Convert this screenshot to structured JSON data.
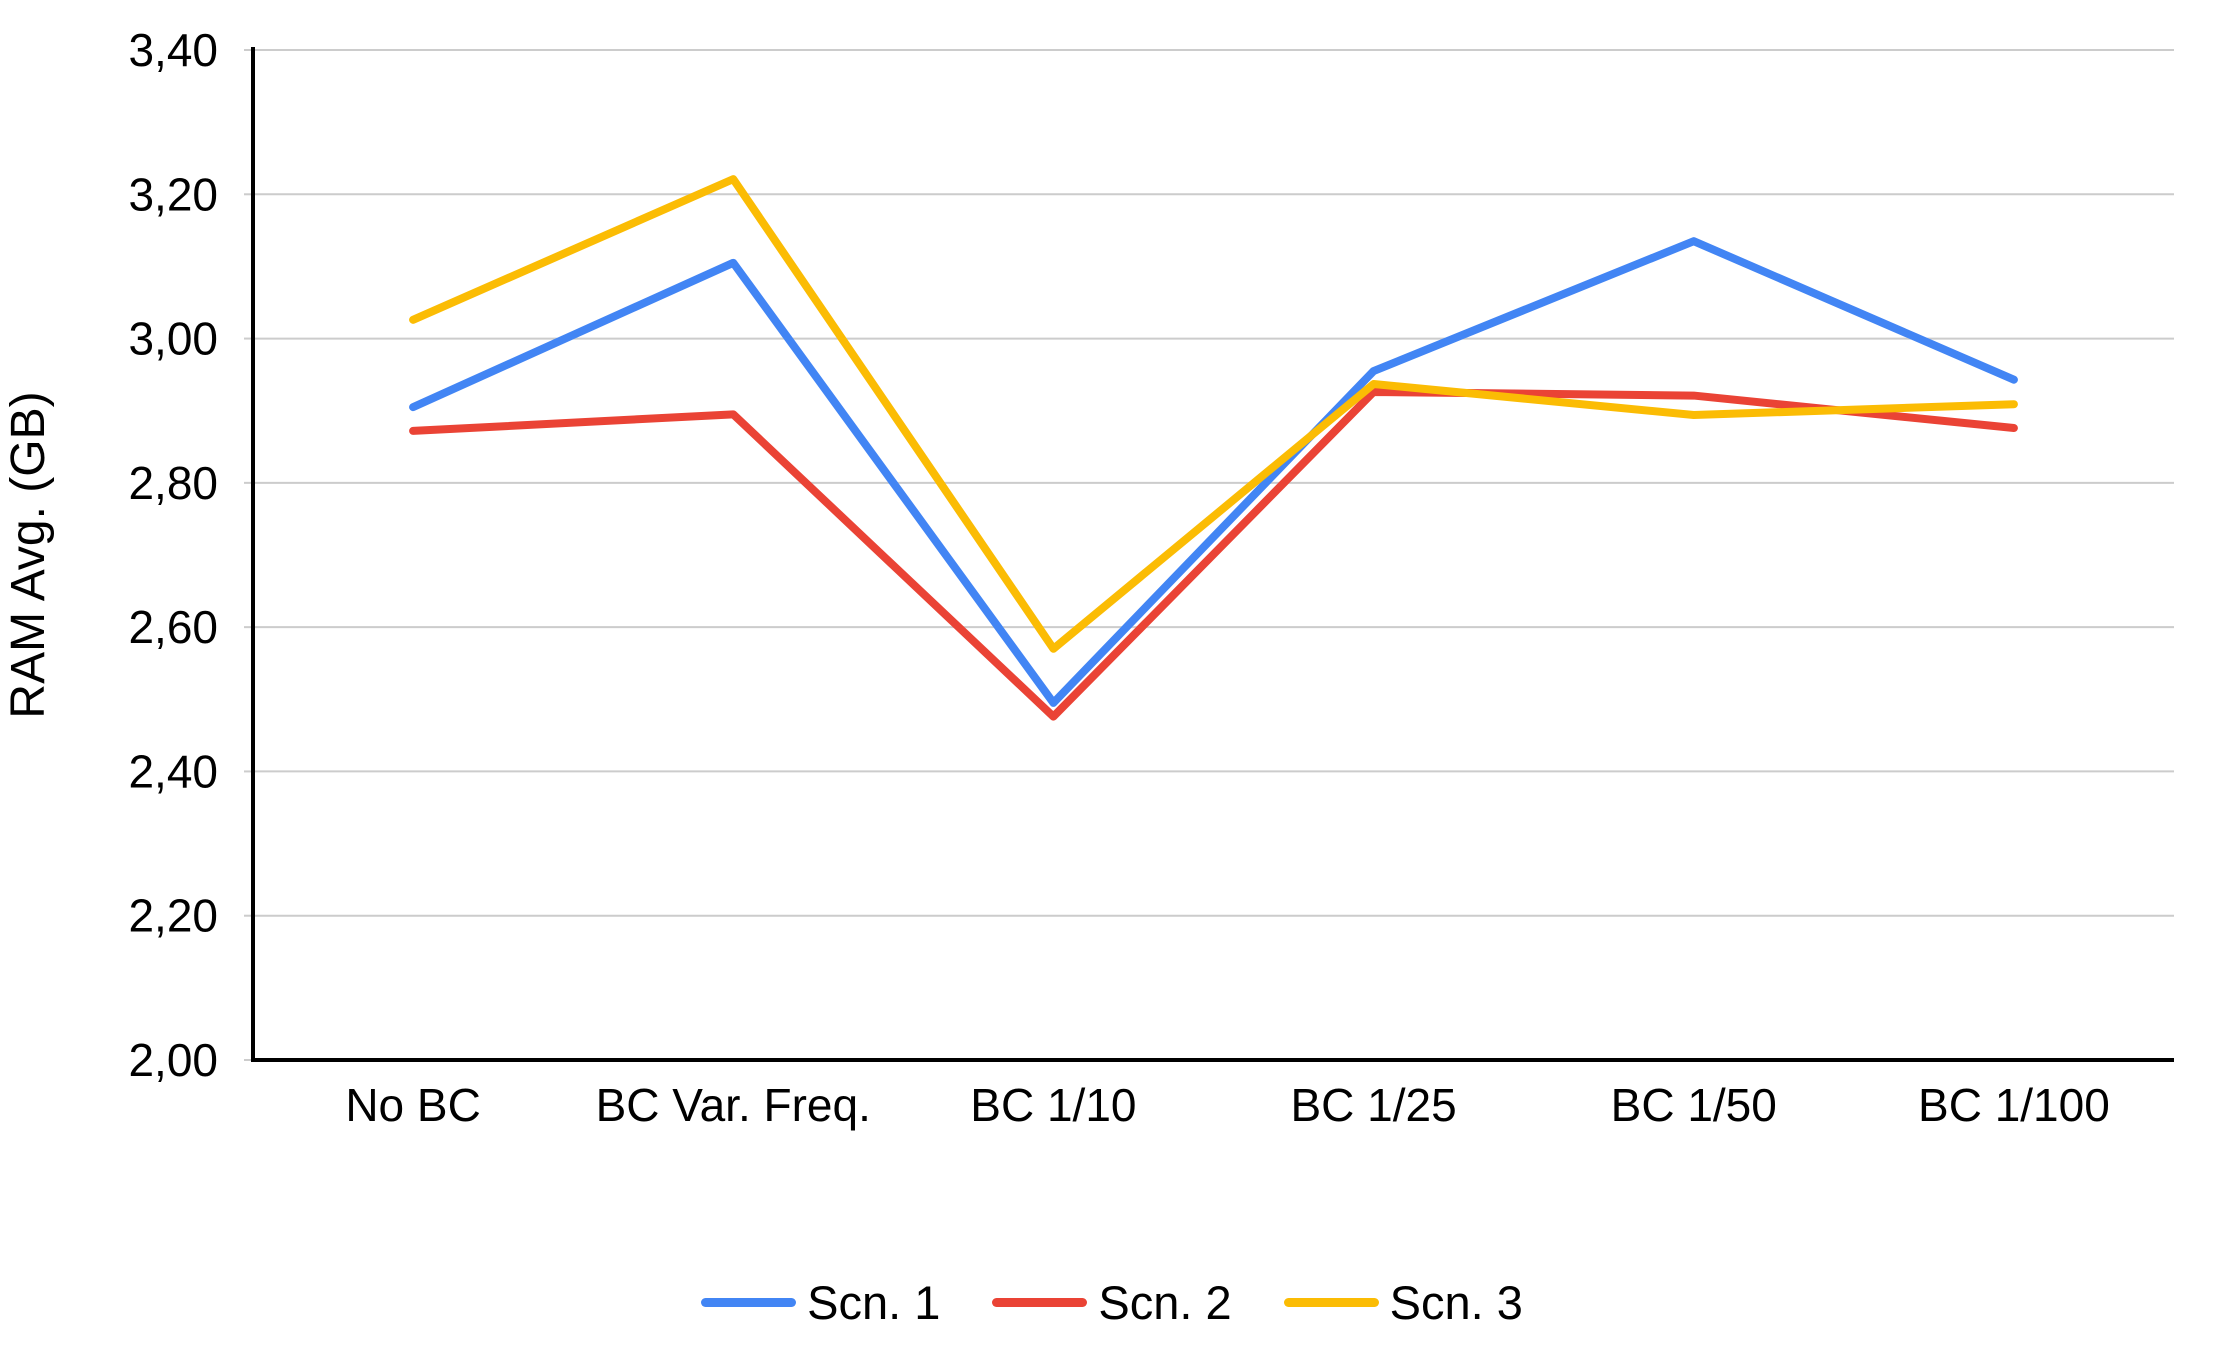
{
  "chart_data": {
    "type": "line",
    "title": "",
    "ylabel": "RAM Avg. (GB)",
    "xlabel": "",
    "ylim": [
      2.0,
      3.4
    ],
    "grid": true,
    "legend_position": "bottom",
    "decimal_separator": ",",
    "yticks": [
      {
        "value": 2.0,
        "label": "2,00"
      },
      {
        "value": 2.2,
        "label": "2,20"
      },
      {
        "value": 2.4,
        "label": "2,40"
      },
      {
        "value": 2.6,
        "label": "2,60"
      },
      {
        "value": 2.8,
        "label": "2,80"
      },
      {
        "value": 3.0,
        "label": "3,00"
      },
      {
        "value": 3.2,
        "label": "3,20"
      },
      {
        "value": 3.4,
        "label": "3,40"
      }
    ],
    "categories": [
      "No BC",
      "BC Var. Freq.",
      "BC 1/10",
      "BC 1/25",
      "BC 1/50",
      "BC 1/100"
    ],
    "series": [
      {
        "name": "Scn. 1",
        "color": "#4285F4",
        "values": [
          2.905,
          3.105,
          2.495,
          2.955,
          3.135,
          2.943
        ]
      },
      {
        "name": "Scn. 2",
        "color": "#EA4335",
        "values": [
          2.872,
          2.895,
          2.476,
          2.926,
          2.921,
          2.876
        ]
      },
      {
        "name": "Scn. 3",
        "color": "#FBBC04",
        "values": [
          3.026,
          3.221,
          2.57,
          2.937,
          2.894,
          2.909
        ]
      }
    ],
    "colors": {
      "axis": "#000000",
      "gridline": "#cccccc",
      "text": "#000000",
      "background": "#ffffff"
    }
  }
}
